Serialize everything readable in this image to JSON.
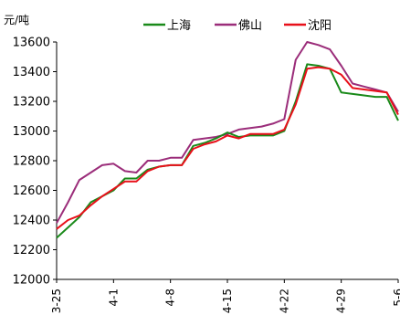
{
  "chart_data": {
    "type": "line",
    "unit_label": "元/吨",
    "x": [
      "3-25",
      "3-26",
      "3-27",
      "3-28",
      "3-29",
      "4-1",
      "4-2",
      "4-3",
      "4-4",
      "4-5",
      "4-8",
      "4-9",
      "4-10",
      "4-11",
      "4-12",
      "4-15",
      "4-16",
      "4-17",
      "4-18",
      "4-19",
      "4-22",
      "4-23",
      "4-24",
      "4-25",
      "4-26",
      "4-29",
      "4-30",
      "5-1",
      "5-2",
      "5-3",
      "5-6"
    ],
    "x_tick_labels": [
      "3-25",
      "4-1",
      "4-8",
      "4-15",
      "4-22",
      "4-29",
      "5-6"
    ],
    "x_tick_index": [
      0,
      5,
      10,
      15,
      20,
      25,
      30
    ],
    "ylim": [
      12000,
      13600
    ],
    "yticks": [
      12000,
      12200,
      12400,
      12600,
      12800,
      13000,
      13200,
      13400,
      13600
    ],
    "grid": false,
    "legend_position": "top",
    "series": [
      {
        "name": "上海",
        "color": "#1a8a1a",
        "values": [
          12280,
          12350,
          12420,
          12520,
          12560,
          12600,
          12680,
          12680,
          12740,
          12760,
          12770,
          12770,
          12900,
          12920,
          12950,
          12990,
          12960,
          12970,
          12970,
          12970,
          13000,
          13200,
          13450,
          13440,
          13420,
          13260,
          13250,
          13240,
          13230,
          13230,
          13070
        ]
      },
      {
        "name": "佛山",
        "color": "#9b2d7a",
        "values": [
          12380,
          12520,
          12670,
          12720,
          12770,
          12780,
          12730,
          12720,
          12800,
          12800,
          12820,
          12820,
          12940,
          12950,
          12960,
          12980,
          13010,
          13020,
          13030,
          13050,
          13080,
          13480,
          13600,
          13580,
          13550,
          13440,
          13320,
          13300,
          13280,
          13260,
          13130
        ]
      },
      {
        "name": "沈阳",
        "color": "#e8101a",
        "values": [
          12340,
          12400,
          12430,
          12500,
          12560,
          12610,
          12660,
          12660,
          12730,
          12760,
          12770,
          12770,
          12880,
          12910,
          12930,
          12970,
          12950,
          12980,
          12980,
          12980,
          13010,
          13180,
          13420,
          13430,
          13420,
          13380,
          13290,
          13280,
          13270,
          13260,
          13110
        ]
      }
    ]
  }
}
